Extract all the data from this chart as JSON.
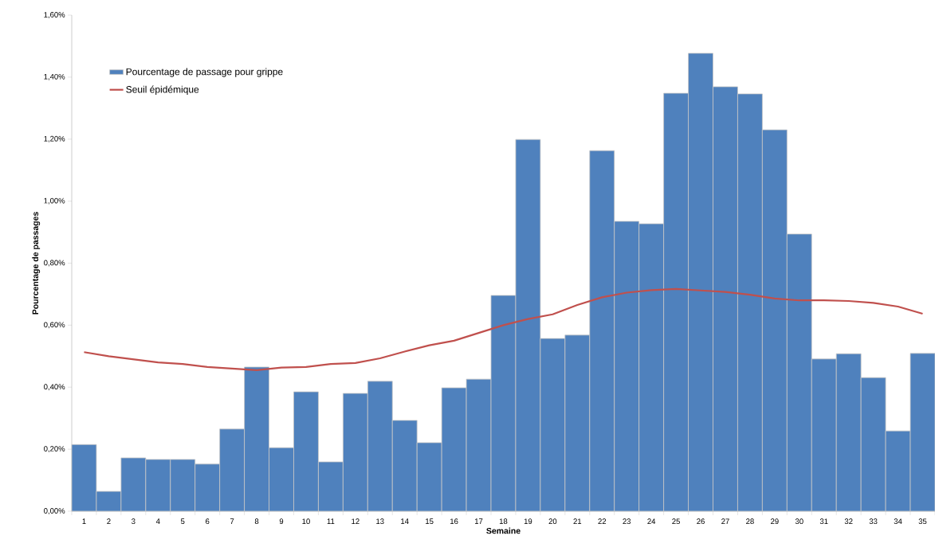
{
  "chart_data": {
    "type": "bar",
    "xlabel": "Semaine",
    "ylabel": "Pourcentage de passages",
    "categories": [
      "1",
      "2",
      "3",
      "4",
      "5",
      "6",
      "7",
      "8",
      "9",
      "10",
      "11",
      "12",
      "13",
      "14",
      "15",
      "16",
      "17",
      "18",
      "19",
      "20",
      "21",
      "22",
      "23",
      "24",
      "25",
      "26",
      "27",
      "28",
      "29",
      "30",
      "31",
      "32",
      "33",
      "34",
      "35"
    ],
    "series": [
      {
        "name": "Pourcentage de passage pour grippe",
        "color": "#4f81bd",
        "values": [
          0.215,
          0.064,
          0.172,
          0.167,
          0.167,
          0.152,
          0.265,
          0.465,
          0.205,
          0.385,
          0.159,
          0.38,
          0.419,
          0.293,
          0.221,
          0.398,
          0.426,
          0.696,
          1.199,
          0.557,
          0.568,
          1.163,
          0.935,
          0.927,
          1.348,
          1.477,
          1.369,
          1.346,
          1.23,
          0.894,
          0.491,
          0.508,
          0.431,
          0.259,
          0.509
        ]
      },
      {
        "name": "Seuil épidémique",
        "type": "line",
        "color": "#c0504d",
        "values": [
          0.513,
          0.5,
          0.49,
          0.48,
          0.475,
          0.465,
          0.46,
          0.455,
          0.463,
          0.465,
          0.475,
          0.478,
          0.493,
          0.515,
          0.535,
          0.55,
          0.575,
          0.6,
          0.62,
          0.635,
          0.665,
          0.69,
          0.705,
          0.713,
          0.717,
          0.712,
          0.707,
          0.698,
          0.686,
          0.68,
          0.68,
          0.678,
          0.672,
          0.66,
          0.637
        ]
      }
    ],
    "ylim": [
      0,
      1.6
    ],
    "yticks": [
      {
        "value": 0,
        "label": "0,00%"
      },
      {
        "value": 0.2,
        "label": "0,20%"
      },
      {
        "value": 0.4,
        "label": "0,40%"
      },
      {
        "value": 0.6,
        "label": "0,60%"
      },
      {
        "value": 0.8,
        "label": "0,80%"
      },
      {
        "value": 1.0,
        "label": "1,00%"
      },
      {
        "value": 1.2,
        "label": "1,20%"
      },
      {
        "value": 1.4,
        "label": "1,40%"
      },
      {
        "value": 1.6,
        "label": "1,60%"
      }
    ],
    "grid": false,
    "legend": "top left",
    "marker": "none",
    "line_style": "solid"
  }
}
